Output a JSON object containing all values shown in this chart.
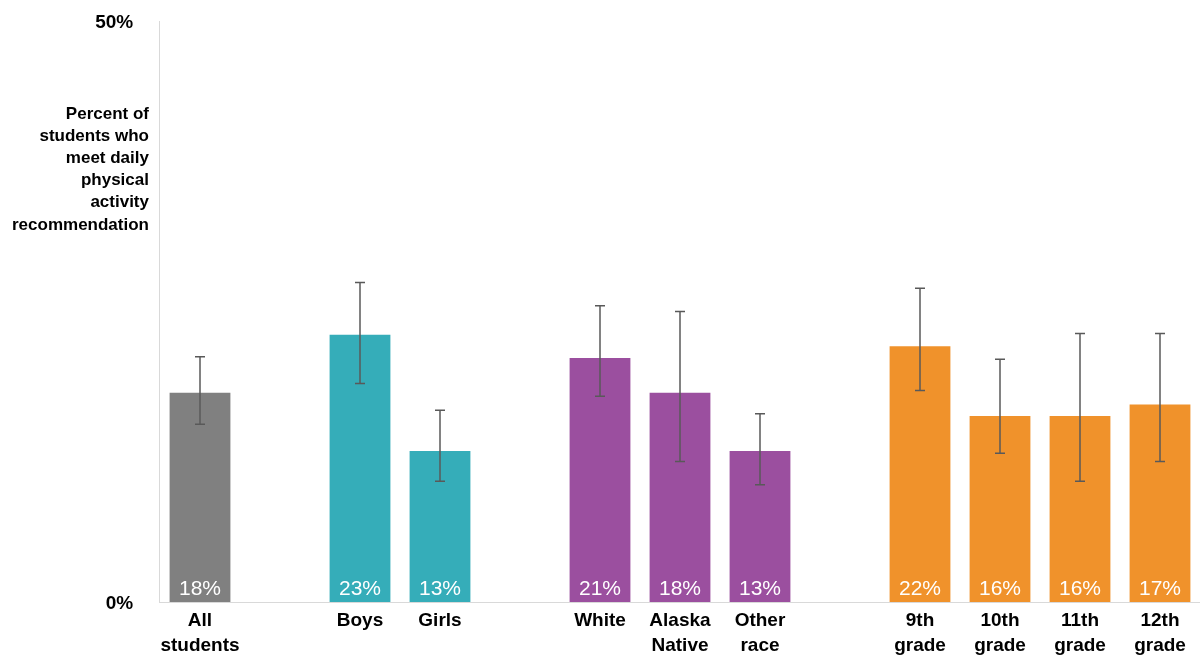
{
  "chart_data": {
    "type": "bar",
    "ylabel": "Percent of students who meet daily physical activity recommendation",
    "categories": [
      "All students",
      null,
      "Boys",
      "Girls",
      null,
      "White",
      "Alaska Native",
      "Other race",
      null,
      "9th grade",
      "10th grade",
      "11th grade",
      "12th grade"
    ],
    "values": [
      18,
      null,
      23,
      13,
      null,
      21,
      18,
      13,
      null,
      22,
      16,
      16,
      17
    ],
    "colors": [
      "#808080",
      null,
      "#35adb9",
      "#35adb9",
      null,
      "#9b4f9f",
      "#9b4f9f",
      "#9b4f9f",
      null,
      "#f0922b",
      "#f0922b",
      "#f0922b",
      "#f0922b"
    ],
    "errors": [
      [
        15.3,
        21.1
      ],
      null,
      [
        18.8,
        27.5
      ],
      [
        10.4,
        16.5
      ],
      null,
      [
        17.7,
        25.5
      ],
      [
        12.1,
        25
      ],
      [
        10.1,
        16.2
      ],
      null,
      [
        18.2,
        27
      ],
      [
        12.8,
        20.9
      ],
      [
        10.4,
        23.1
      ],
      [
        12.1,
        23.1
      ]
    ],
    "ylim": [
      0,
      50
    ],
    "yticks": [
      {
        "value": 0,
        "label": "0%"
      },
      {
        "value": 50,
        "label": "50%"
      }
    ],
    "value_labels": [
      "18%",
      null,
      "23%",
      "13%",
      null,
      "21%",
      "18%",
      "13%",
      null,
      "22%",
      "16%",
      "16%",
      "17%"
    ]
  }
}
